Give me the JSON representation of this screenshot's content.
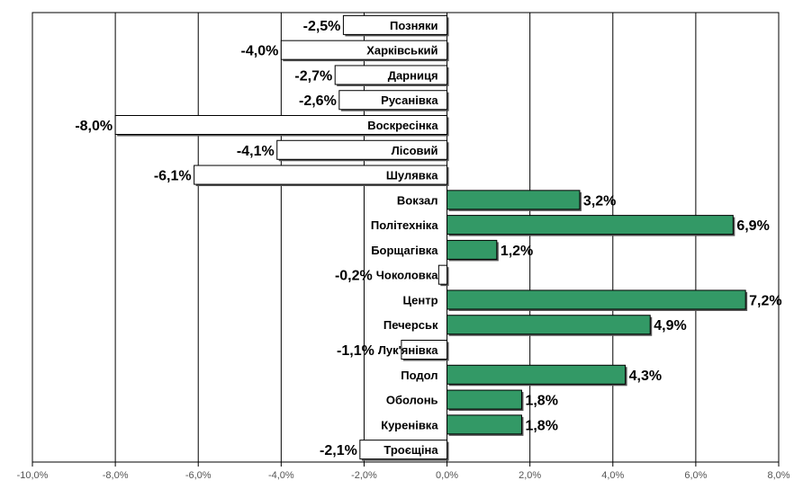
{
  "chart_data": {
    "type": "bar",
    "orientation": "horizontal",
    "categories": [
      "Позняки",
      "Харківський",
      "Дарниця",
      "Русанівка",
      "Воскресінка",
      "Лісовий",
      "Шулявка",
      "Вокзал",
      "Політехніка",
      "Борщагівка",
      "Чоколовка",
      "Центр",
      "Печерськ",
      "Лук'янівка",
      "Подол",
      "Оболонь",
      "Куренівка",
      "Троєщіна"
    ],
    "values": [
      -2.5,
      -4.0,
      -2.7,
      -2.6,
      -8.0,
      -4.1,
      -6.1,
      3.2,
      6.9,
      1.2,
      -0.2,
      7.2,
      4.9,
      -1.1,
      4.3,
      1.8,
      1.8,
      -2.1
    ],
    "value_labels": [
      "-2,5%",
      "-4,0%",
      "-2,7%",
      "-2,6%",
      "-8,0%",
      "-4,1%",
      "-6,1%",
      "3,2%",
      "6,9%",
      "1,2%",
      "-0,2%",
      "7,2%",
      "4,9%",
      "-1,1%",
      "4,3%",
      "1,8%",
      "1,8%",
      "-2,1%"
    ],
    "xlim": [
      -10,
      8
    ],
    "x_ticks": [
      -10,
      -8,
      -6,
      -4,
      -2,
      0,
      2,
      4,
      6,
      8
    ],
    "x_tick_labels": [
      "-10,0%",
      "-8,0%",
      "-6,0%",
      "-4,0%",
      "-2,0%",
      "0,0%",
      "2,0%",
      "4,0%",
      "6,0%",
      "8,0%"
    ],
    "grid": true,
    "colors": {
      "positive": "#339966",
      "negative": "#ffffff",
      "outline": "#000000",
      "shadow": "#555555",
      "grid": "#000000"
    }
  }
}
